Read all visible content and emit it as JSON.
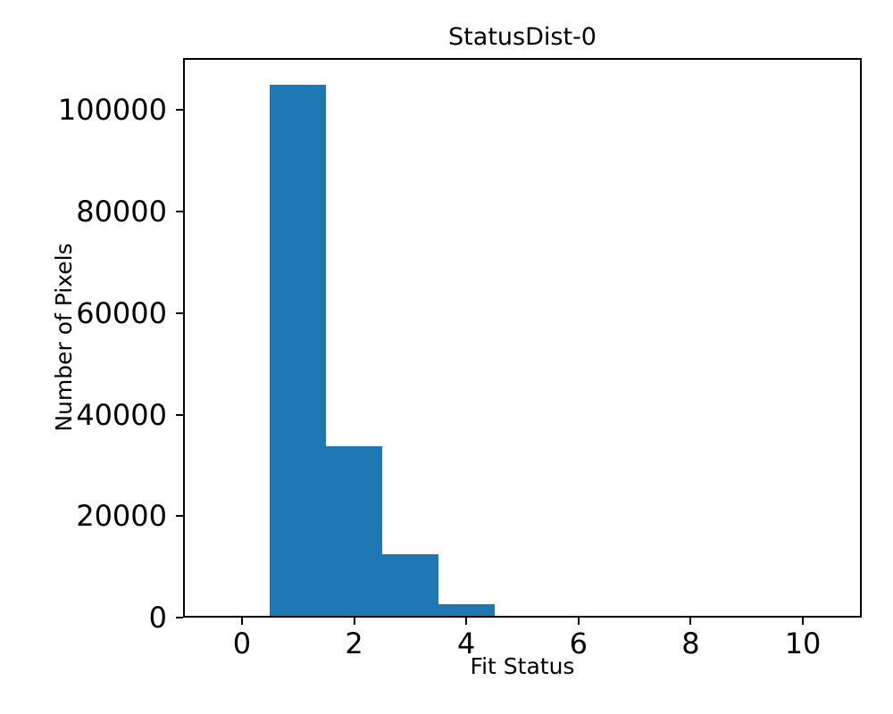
{
  "chart_data": {
    "type": "bar",
    "subtype": "histogram",
    "title": "StatusDist-0",
    "xlabel": "Fit Status",
    "ylabel": "Number of Pixels",
    "bar_color": "#1f77b4",
    "axis_color": "#000000",
    "background_color": "#ffffff",
    "grid": false,
    "legend": false,
    "xlim": [
      -1.05,
      11.05
    ],
    "ylim": [
      0,
      110250
    ],
    "x_ticks": [
      0,
      2,
      4,
      6,
      8,
      10
    ],
    "y_ticks": [
      0,
      20000,
      40000,
      60000,
      80000,
      100000
    ],
    "bins": [
      {
        "x_start": 0.5,
        "x_end": 1.5,
        "center": 1,
        "count": 105000
      },
      {
        "x_start": 1.5,
        "x_end": 2.5,
        "center": 2,
        "count": 33700
      },
      {
        "x_start": 2.5,
        "x_end": 3.5,
        "center": 3,
        "count": 12400
      },
      {
        "x_start": 3.5,
        "x_end": 4.5,
        "center": 4,
        "count": 2700
      }
    ]
  }
}
